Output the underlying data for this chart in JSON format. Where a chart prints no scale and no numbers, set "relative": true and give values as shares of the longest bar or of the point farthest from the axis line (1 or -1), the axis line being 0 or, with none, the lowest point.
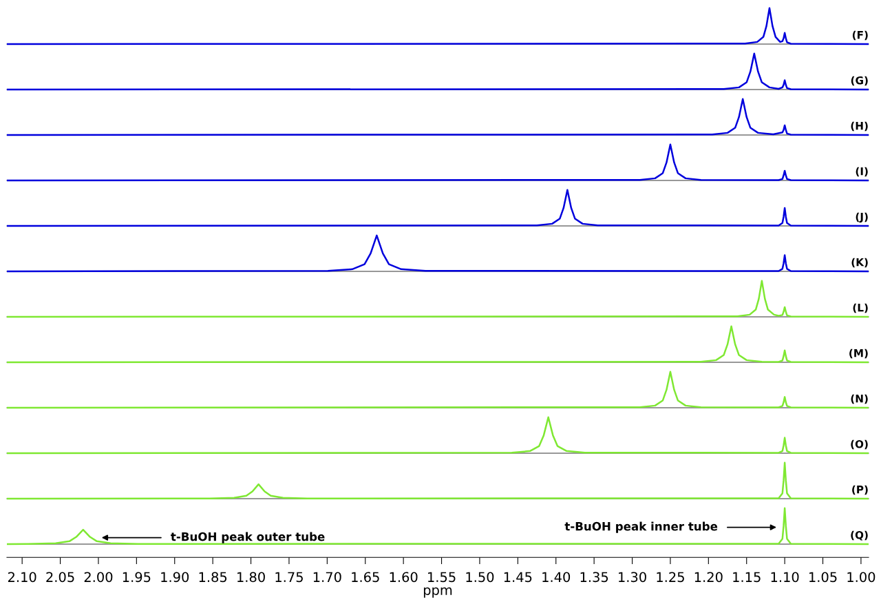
{
  "chart_data": [
    {
      "type": "line",
      "relative": true,
      "xlim": [
        2.12,
        0.99
      ],
      "tick_labels": false,
      "series": [
        {
          "name": "(F)",
          "color": "#0000dd",
          "x": [
            2.12,
            1.152,
            1.136,
            1.128,
            1.124,
            1.12,
            1.116,
            1.112,
            1.106,
            1.103,
            1.1015,
            1.1,
            1.0985,
            1.097,
            1.092,
            0.99
          ],
          "values": [
            0,
            0.015,
            0.06,
            0.2,
            0.5,
            1,
            0.5,
            0.2,
            0.06,
            0.08,
            0.16,
            0.31,
            0.16,
            0.05,
            0.01,
            0
          ]
        }
      ]
    },
    {
      "type": "line",
      "relative": true,
      "xlim": [
        2.12,
        0.99
      ],
      "tick_labels": false,
      "series": [
        {
          "name": "(G)",
          "color": "#0000dd",
          "x": [
            2.12,
            1.18,
            1.16,
            1.15,
            1.145,
            1.14,
            1.135,
            1.13,
            1.12,
            1.108,
            1.103,
            1.1015,
            1.1,
            1.0985,
            1.097,
            1.092,
            0.99
          ],
          "values": [
            0,
            0.015,
            0.06,
            0.2,
            0.5,
            1,
            0.5,
            0.2,
            0.06,
            0.02,
            0.06,
            0.13,
            0.26,
            0.13,
            0.04,
            0.01,
            0
          ]
        }
      ]
    },
    {
      "type": "line",
      "relative": true,
      "xlim": [
        2.12,
        0.99
      ],
      "tick_labels": false,
      "series": [
        {
          "name": "(H)",
          "color": "#0000dd",
          "x": [
            2.12,
            1.195,
            1.175,
            1.165,
            1.16,
            1.155,
            1.15,
            1.145,
            1.135,
            1.115,
            1.103,
            1.1015,
            1.1,
            1.0985,
            1.097,
            1.092,
            0.99
          ],
          "values": [
            0,
            0.015,
            0.06,
            0.2,
            0.5,
            1,
            0.5,
            0.2,
            0.06,
            0.02,
            0.07,
            0.14,
            0.27,
            0.14,
            0.04,
            0.01,
            0
          ]
        }
      ]
    },
    {
      "type": "line",
      "relative": true,
      "xlim": [
        2.12,
        0.99
      ],
      "tick_labels": false,
      "series": [
        {
          "name": "(I)",
          "color": "#0000dd",
          "x": [
            2.12,
            1.29,
            1.27,
            1.26,
            1.255,
            1.25,
            1.245,
            1.24,
            1.23,
            1.21,
            1.108,
            1.103,
            1.1015,
            1.1,
            1.0985,
            1.097,
            1.092,
            0.99
          ],
          "values": [
            0,
            0.015,
            0.06,
            0.2,
            0.5,
            1,
            0.5,
            0.2,
            0.06,
            0.015,
            0.01,
            0.04,
            0.14,
            0.27,
            0.14,
            0.04,
            0.01,
            0
          ]
        }
      ]
    },
    {
      "type": "line",
      "relative": true,
      "xlim": [
        2.12,
        0.99
      ],
      "tick_labels": false,
      "series": [
        {
          "name": "(J)",
          "color": "#0000dd",
          "x": [
            2.12,
            1.425,
            1.405,
            1.395,
            1.39,
            1.385,
            1.38,
            1.375,
            1.365,
            1.345,
            1.108,
            1.103,
            1.1015,
            1.1,
            1.0985,
            1.097,
            1.092,
            0.99
          ],
          "values": [
            0,
            0.015,
            0.06,
            0.2,
            0.5,
            1,
            0.5,
            0.2,
            0.06,
            0.015,
            0.01,
            0.08,
            0.25,
            0.5,
            0.25,
            0.08,
            0.01,
            0
          ]
        }
      ]
    },
    {
      "type": "line",
      "relative": true,
      "xlim": [
        2.12,
        0.99
      ],
      "tick_labels": false,
      "series": [
        {
          "name": "(K)",
          "color": "#0000dd",
          "x": [
            2.12,
            1.699,
            1.667,
            1.651,
            1.643,
            1.635,
            1.627,
            1.619,
            1.603,
            1.571,
            1.108,
            1.103,
            1.1015,
            1.1,
            1.0985,
            1.097,
            1.092,
            0.99
          ],
          "values": [
            0,
            0.015,
            0.06,
            0.2,
            0.5,
            1,
            0.5,
            0.2,
            0.06,
            0.015,
            0.01,
            0.07,
            0.22,
            0.45,
            0.22,
            0.07,
            0.01,
            0
          ]
        }
      ]
    },
    {
      "type": "line",
      "relative": true,
      "xlim": [
        2.12,
        0.99
      ],
      "tick_labels": false,
      "series": [
        {
          "name": "(L)",
          "color": "#7fe832",
          "x": [
            2.12,
            1.162,
            1.146,
            1.138,
            1.134,
            1.13,
            1.126,
            1.122,
            1.114,
            1.108,
            1.103,
            1.1015,
            1.1,
            1.0985,
            1.097,
            1.092,
            0.99
          ],
          "values": [
            0,
            0.015,
            0.06,
            0.2,
            0.5,
            1,
            0.5,
            0.2,
            0.06,
            0.03,
            0.05,
            0.14,
            0.27,
            0.14,
            0.04,
            0.01,
            0
          ]
        }
      ]
    },
    {
      "type": "line",
      "relative": true,
      "xlim": [
        2.12,
        0.99
      ],
      "tick_labels": false,
      "series": [
        {
          "name": "(M)",
          "color": "#7fe832",
          "x": [
            2.12,
            1.21,
            1.19,
            1.18,
            1.175,
            1.17,
            1.165,
            1.16,
            1.15,
            1.13,
            1.108,
            1.103,
            1.1015,
            1.1,
            1.0985,
            1.097,
            1.092,
            0.99
          ],
          "values": [
            0,
            0.015,
            0.06,
            0.2,
            0.5,
            1,
            0.5,
            0.2,
            0.06,
            0.015,
            0.01,
            0.05,
            0.17,
            0.33,
            0.17,
            0.05,
            0.01,
            0
          ]
        }
      ]
    },
    {
      "type": "line",
      "relative": true,
      "xlim": [
        2.12,
        0.99
      ],
      "tick_labels": false,
      "series": [
        {
          "name": "(N)",
          "color": "#7fe832",
          "x": [
            2.12,
            1.29,
            1.27,
            1.26,
            1.255,
            1.25,
            1.245,
            1.24,
            1.23,
            1.21,
            1.108,
            1.103,
            1.1015,
            1.1,
            1.0985,
            1.097,
            1.092,
            0.99
          ],
          "values": [
            0,
            0.015,
            0.06,
            0.2,
            0.5,
            1,
            0.5,
            0.2,
            0.06,
            0.015,
            0.01,
            0.05,
            0.15,
            0.3,
            0.15,
            0.05,
            0.01,
            0
          ]
        }
      ]
    },
    {
      "type": "line",
      "relative": true,
      "xlim": [
        2.12,
        0.99
      ],
      "tick_labels": false,
      "series": [
        {
          "name": "(O)",
          "color": "#7fe832",
          "x": [
            2.12,
            1.458,
            1.434,
            1.422,
            1.416,
            1.41,
            1.404,
            1.398,
            1.386,
            1.362,
            1.108,
            1.103,
            1.1015,
            1.1,
            1.0985,
            1.097,
            1.092,
            0.99
          ],
          "values": [
            0,
            0.015,
            0.06,
            0.2,
            0.5,
            1,
            0.5,
            0.2,
            0.06,
            0.015,
            0.01,
            0.06,
            0.21,
            0.43,
            0.21,
            0.06,
            0.01,
            0
          ]
        }
      ]
    },
    {
      "type": "line",
      "relative": true,
      "xlim": [
        2.12,
        0.99
      ],
      "tick_labels": false,
      "series": [
        {
          "name": "(P)",
          "color": "#7fe832",
          "x": [
            2.12,
            1.854,
            1.822,
            1.806,
            1.798,
            1.79,
            1.782,
            1.774,
            1.758,
            1.726,
            1.108,
            1.103,
            1.1015,
            1.1,
            1.0985,
            1.097,
            1.092,
            0.99
          ],
          "values": [
            0,
            0.006,
            0.024,
            0.08,
            0.2,
            0.4,
            0.2,
            0.08,
            0.024,
            0.006,
            0.01,
            0.15,
            0.5,
            1,
            0.5,
            0.15,
            0.01,
            0
          ]
        }
      ]
    },
    {
      "type": "line",
      "relative": true,
      "xlim": [
        2.12,
        0.99
      ],
      "tick_labels": "x",
      "xlabel": "ppm",
      "annotations": [
        "t-BuOH peak outer tube",
        "t-BuOH peak inner tube"
      ],
      "xticks": [
        {
          "value": 2.1,
          "label": "2.10"
        },
        {
          "value": 2.05,
          "label": "2.05"
        },
        {
          "value": 2.0,
          "label": "2.00"
        },
        {
          "value": 1.95,
          "label": "1.95"
        },
        {
          "value": 1.9,
          "label": "1.90"
        },
        {
          "value": 1.85,
          "label": "1.85"
        },
        {
          "value": 1.8,
          "label": "1.80"
        },
        {
          "value": 1.75,
          "label": "1.75"
        },
        {
          "value": 1.7,
          "label": "1.70"
        },
        {
          "value": 1.65,
          "label": "1.65"
        },
        {
          "value": 1.6,
          "label": "1.60"
        },
        {
          "value": 1.55,
          "label": "1.55"
        },
        {
          "value": 1.5,
          "label": "1.50"
        },
        {
          "value": 1.45,
          "label": "1.45"
        },
        {
          "value": 1.4,
          "label": "1.40"
        },
        {
          "value": 1.35,
          "label": "1.35"
        },
        {
          "value": 1.3,
          "label": "1.30"
        },
        {
          "value": 1.25,
          "label": "1.25"
        },
        {
          "value": 1.2,
          "label": "1.20"
        },
        {
          "value": 1.15,
          "label": "1.15"
        },
        {
          "value": 1.1,
          "label": "1.10"
        },
        {
          "value": 1.05,
          "label": "1.05"
        },
        {
          "value": 1.0,
          "label": "1.00"
        }
      ],
      "series": [
        {
          "name": "(Q)",
          "color": "#7fe832",
          "x": [
            2.12,
            2.092,
            2.056,
            2.038,
            2.029,
            2.02,
            2.011,
            2.002,
            1.984,
            1.948,
            1.108,
            1.103,
            1.1015,
            1.1,
            1.0985,
            1.097,
            1.092,
            0.99
          ],
          "values": [
            0,
            0.006,
            0.024,
            0.08,
            0.2,
            0.4,
            0.2,
            0.08,
            0.024,
            0.006,
            0.01,
            0.15,
            0.5,
            1,
            0.5,
            0.15,
            0.01,
            0
          ]
        }
      ]
    }
  ]
}
